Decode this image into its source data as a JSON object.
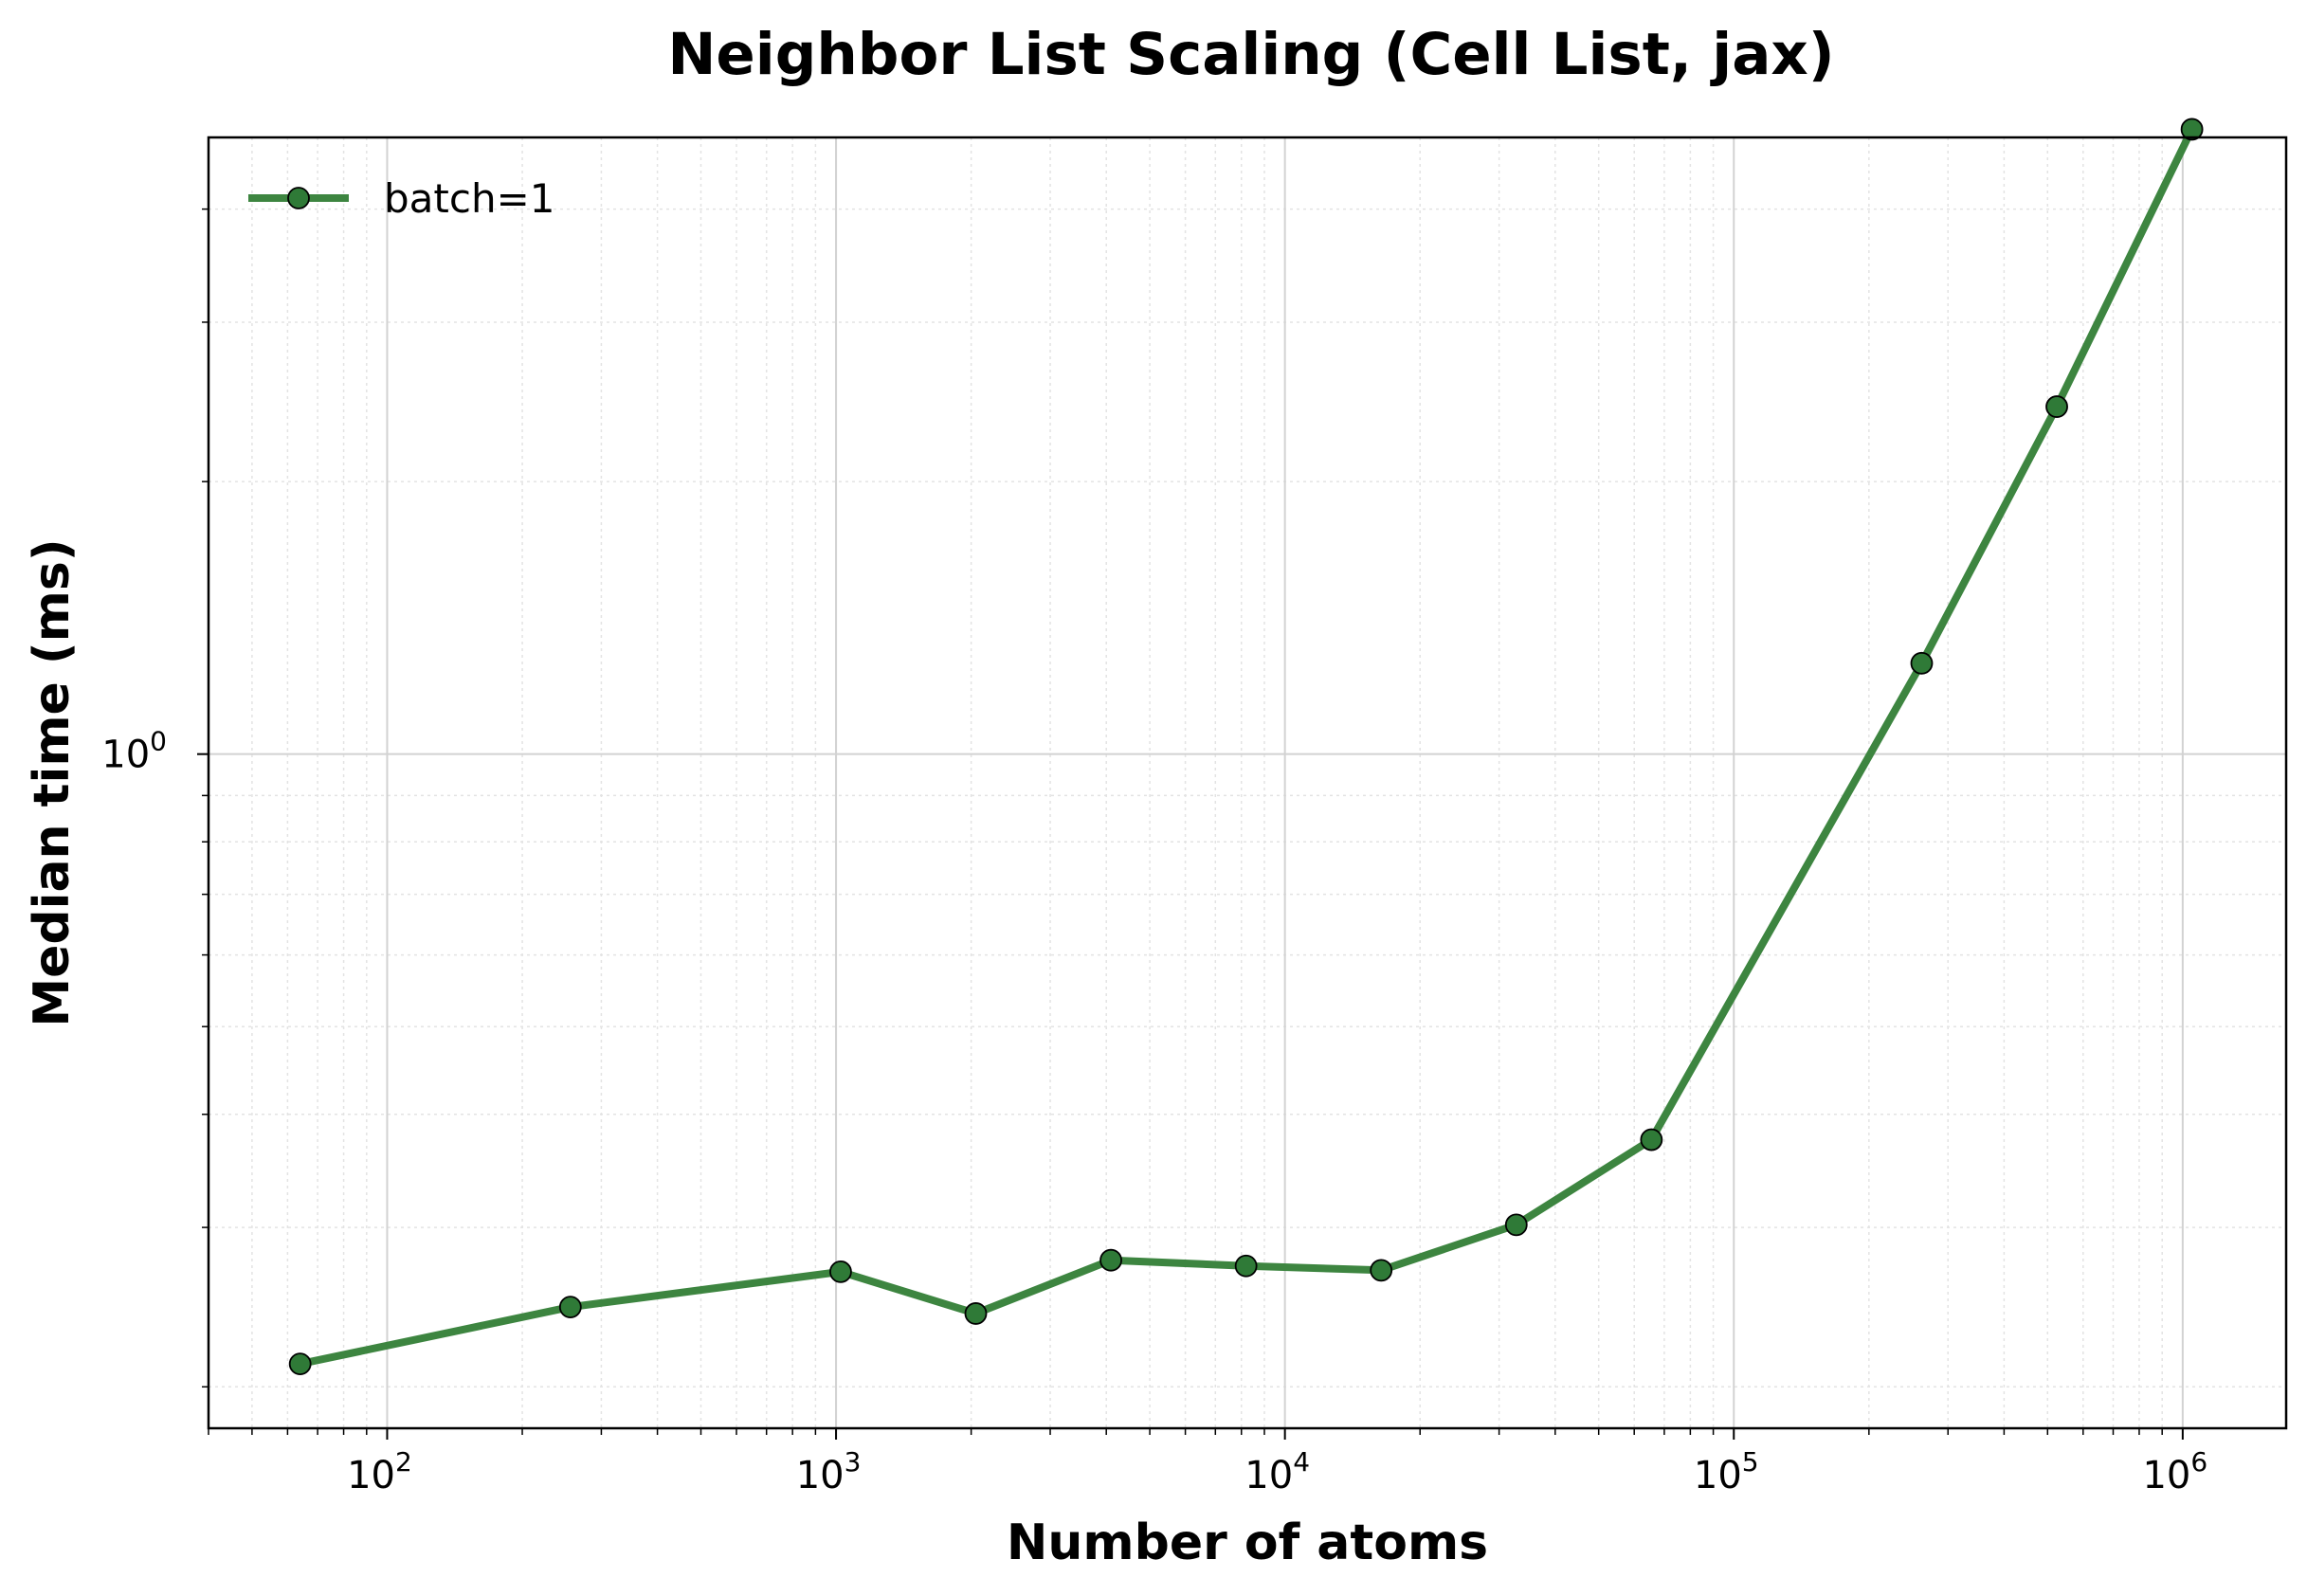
{
  "chart_data": {
    "type": "line",
    "title": "Neighbor List Scaling (Cell List, jax)",
    "xlabel": "Number of atoms",
    "ylabel": "Median time (ms)",
    "x_scale": "log",
    "y_scale": "log",
    "xlim": [
      40,
      1700000
    ],
    "ylim": [
      0.18,
      4.8
    ],
    "x_ticks": [
      {
        "base": "10",
        "exp": "2",
        "value": 100
      },
      {
        "base": "10",
        "exp": "3",
        "value": 1000
      },
      {
        "base": "10",
        "exp": "4",
        "value": 10000
      },
      {
        "base": "10",
        "exp": "5",
        "value": 100000
      },
      {
        "base": "10",
        "exp": "6",
        "value": 1000000
      }
    ],
    "y_ticks": [
      {
        "base": "10",
        "exp": "0",
        "value": 1
      }
    ],
    "grid": true,
    "legend_position": "top-left",
    "series": [
      {
        "name": "batch=1",
        "color": "#3d8540",
        "marker_color": "#2f7a37",
        "x": [
          64,
          256,
          1024,
          2048,
          4096,
          8192,
          16384,
          32768,
          65536,
          262144,
          524288,
          1048576
        ],
        "y": [
          0.212,
          0.245,
          0.268,
          0.241,
          0.276,
          0.272,
          0.269,
          0.302,
          0.375,
          1.26,
          2.42,
          4.9
        ]
      }
    ]
  }
}
